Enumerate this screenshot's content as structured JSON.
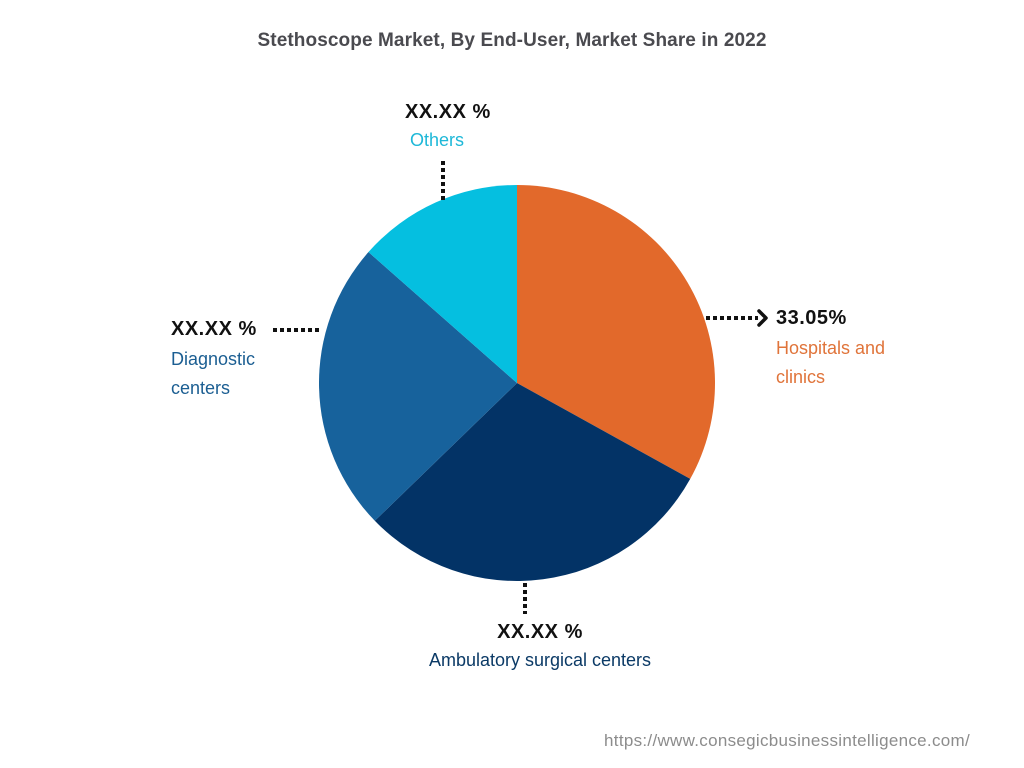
{
  "chart_data": {
    "type": "pie",
    "title": "Stethoscope Market, By End-User, Market Share in 2022",
    "start_angle_deg": 0,
    "direction": "clockwise",
    "slices": [
      {
        "name": "Hospitals and clinics",
        "label_value": "33.05%",
        "value": 33.05,
        "color": "#E2692B",
        "label_color": "#E0743A"
      },
      {
        "name": "Ambulatory surgical centers",
        "label_value": "XX.XX %",
        "value": 29.7,
        "color": "#033366",
        "label_color": "#0B3A66"
      },
      {
        "name": "Diagnostic centers",
        "label_value": "XX.XX %",
        "value": 23.75,
        "color": "#17629C",
        "label_color": "#1B5E92"
      },
      {
        "name": "Others",
        "label_value": "XX.XX %",
        "value": 13.5,
        "color": "#05BFE0",
        "label_color": "#1EB8D8"
      }
    ],
    "legend": "none (direct labels with dotted leader lines)"
  },
  "labels": {
    "hospitals": {
      "pct": "33.05%",
      "name_line1": "Hospitals and",
      "name_line2": "clinics"
    },
    "ambulatory": {
      "pct": "XX.XX %",
      "name_line1": "Ambulatory surgical centers"
    },
    "diagnostic": {
      "pct": "XX.XX %",
      "name_line1": "Diagnostic",
      "name_line2": "centers"
    },
    "others": {
      "pct": "XX.XX %",
      "name_line1": "Others"
    }
  },
  "footer": {
    "url": "https://www.consegicbusinessintelligence.com/"
  }
}
